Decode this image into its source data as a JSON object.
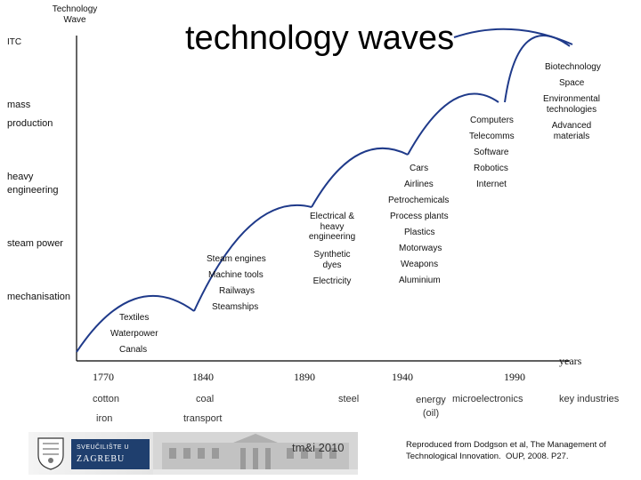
{
  "title": "technology waves",
  "y_axis": {
    "top_label": "Technology\nWave",
    "itc": "ITC"
  },
  "x_axis": {
    "label": "years"
  },
  "levels": [
    "mass\nproduction",
    "heavy\nengineering",
    "steam power",
    "mechanisation"
  ],
  "wave1": [
    "Textiles",
    "Waterpower",
    "Canals"
  ],
  "wave2": [
    "Steam engines",
    "Machine tools",
    "Railways",
    "Steamships"
  ],
  "wave3": [
    "Electrical &\nheavy\nengineering",
    "Synthetic\ndyes",
    "Electricity"
  ],
  "wave4": [
    "Petrochemicals",
    "Process plants",
    "Plastics",
    "Motorways",
    "Weapons",
    "Aluminium",
    "Cars",
    "Airlines"
  ],
  "wave5": [
    "Software",
    "Computers",
    "Telecomms",
    "Robotics",
    "Internet"
  ],
  "wave6": [
    "Biotechnology",
    "Space",
    "Environmental\ntechnologies",
    "Advanced\nmaterials"
  ],
  "years": [
    "1770",
    "1840",
    "1890",
    "1940",
    "1990"
  ],
  "industries_row1": [
    "cotton",
    "coal",
    "steel",
    "energy\n(oil)",
    "microelectronics",
    "key industries"
  ],
  "industries_row2": [
    "iron",
    "transport"
  ],
  "footer": {
    "uni_line1": "SVEUČILIŠTE U",
    "uni_line2": "ZAGREBU",
    "course": "tm&i 2010",
    "source": "Reproduced from Dodgson et al, The Management of\nTechnological Innovation.  OUP, 2008. P27."
  },
  "colors": {
    "wave": "#1f3a8a",
    "axis": "#000000"
  }
}
